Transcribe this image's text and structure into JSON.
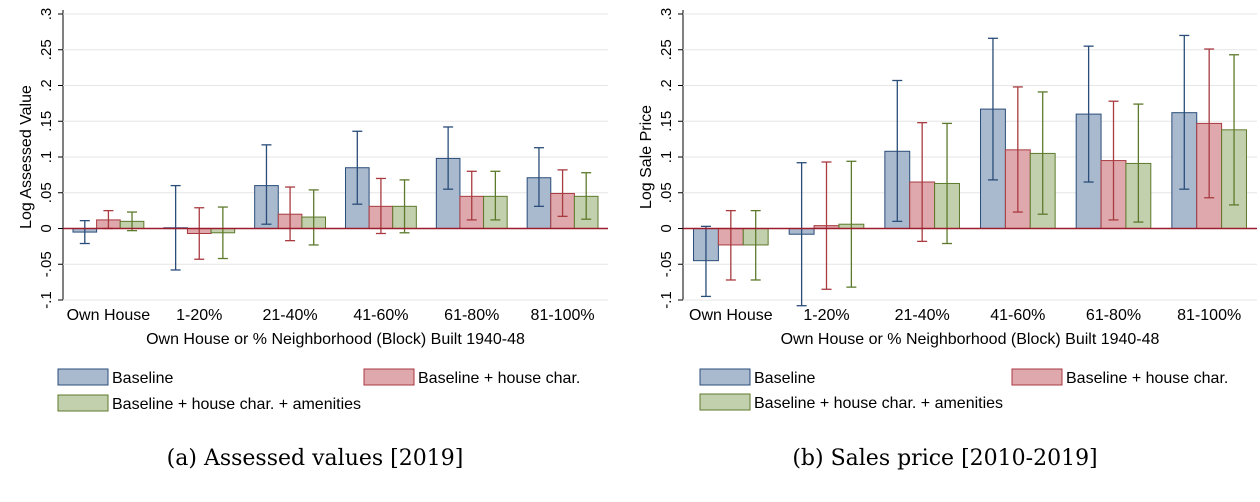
{
  "colors": {
    "baseline": {
      "fill": "#a9b9ce",
      "stroke": "#2a4d79"
    },
    "house": {
      "fill": "#dea8ac",
      "stroke": "#a83a40"
    },
    "amenities": {
      "fill": "#c3d0ad",
      "stroke": "#5d7a2c"
    },
    "zero_line": "#9b1c2c",
    "grid": "#e6e6e6"
  },
  "chart_data": [
    {
      "type": "bar",
      "caption": "(a) Assessed values [2019]",
      "xlabel": "Own House or % Neighborhood (Block) Built 1940-48",
      "ylabel": "Log Assessed Value",
      "ylim": [
        -0.1,
        0.3
      ],
      "yticks": [
        -0.1,
        -0.05,
        0,
        0.05,
        0.1,
        0.15,
        0.2,
        0.25,
        0.3
      ],
      "yticklabels": [
        "-.1",
        "-.05",
        "0",
        ".05",
        ".1",
        ".15",
        ".2",
        ".25",
        ".3"
      ],
      "grid": true,
      "legend_position": "bottom",
      "categories": [
        "Own House",
        "1-20%",
        "21-40%",
        "41-60%",
        "61-80%",
        "81-100%"
      ],
      "series": [
        {
          "name": "Baseline",
          "color_key": "baseline",
          "values": [
            -0.005,
            0.001,
            0.06,
            0.085,
            0.098,
            0.071
          ],
          "ci_low": [
            -0.021,
            -0.058,
            0.006,
            0.034,
            0.055,
            0.031
          ],
          "ci_high": [
            0.011,
            0.06,
            0.117,
            0.136,
            0.142,
            0.113
          ]
        },
        {
          "name": "Baseline + house char.",
          "color_key": "house",
          "values": [
            0.012,
            -0.007,
            0.02,
            0.031,
            0.045,
            0.049
          ],
          "ci_low": [
            0.0,
            -0.043,
            -0.017,
            -0.007,
            0.012,
            0.017
          ],
          "ci_high": [
            0.025,
            0.029,
            0.058,
            0.07,
            0.08,
            0.082
          ]
        },
        {
          "name": "Baseline + house char. + amenities",
          "color_key": "amenities",
          "values": [
            0.01,
            -0.006,
            0.016,
            0.031,
            0.045,
            0.045
          ],
          "ci_low": [
            -0.003,
            -0.042,
            -0.023,
            -0.006,
            0.012,
            0.013
          ],
          "ci_high": [
            0.023,
            0.03,
            0.054,
            0.068,
            0.08,
            0.078
          ]
        }
      ]
    },
    {
      "type": "bar",
      "caption": "(b) Sales price [2010-2019]",
      "xlabel": "Own House or % Neighborhood (Block) Built 1940-48",
      "ylabel": "Log Sale Price",
      "ylim": [
        -0.1,
        0.3
      ],
      "yticks": [
        -0.1,
        -0.05,
        0,
        0.05,
        0.1,
        0.15,
        0.2,
        0.25,
        0.3
      ],
      "yticklabels": [
        "-.1",
        "-.05",
        "0",
        ".05",
        ".1",
        ".15",
        ".2",
        ".25",
        ".3"
      ],
      "grid": true,
      "legend_position": "bottom",
      "categories": [
        "Own House",
        "1-20%",
        "21-40%",
        "41-60%",
        "61-80%",
        "81-100%"
      ],
      "series": [
        {
          "name": "Baseline",
          "color_key": "baseline",
          "values": [
            -0.045,
            -0.008,
            0.108,
            0.167,
            0.16,
            0.162
          ],
          "ci_low": [
            -0.095,
            -0.108,
            0.01,
            0.068,
            0.065,
            0.055
          ],
          "ci_high": [
            0.003,
            0.092,
            0.207,
            0.266,
            0.255,
            0.27
          ]
        },
        {
          "name": "Baseline + house char.",
          "color_key": "house",
          "values": [
            -0.023,
            0.004,
            0.065,
            0.11,
            0.095,
            0.147
          ],
          "ci_low": [
            -0.072,
            -0.085,
            -0.018,
            0.023,
            0.012,
            0.043
          ],
          "ci_high": [
            0.025,
            0.093,
            0.148,
            0.198,
            0.178,
            0.251
          ]
        },
        {
          "name": "Baseline + house char. + amenities",
          "color_key": "amenities",
          "values": [
            -0.023,
            0.006,
            0.063,
            0.105,
            0.091,
            0.138
          ],
          "ci_low": [
            -0.072,
            -0.082,
            -0.021,
            0.02,
            0.009,
            0.033
          ],
          "ci_high": [
            0.025,
            0.094,
            0.147,
            0.191,
            0.174,
            0.243
          ]
        }
      ]
    }
  ]
}
